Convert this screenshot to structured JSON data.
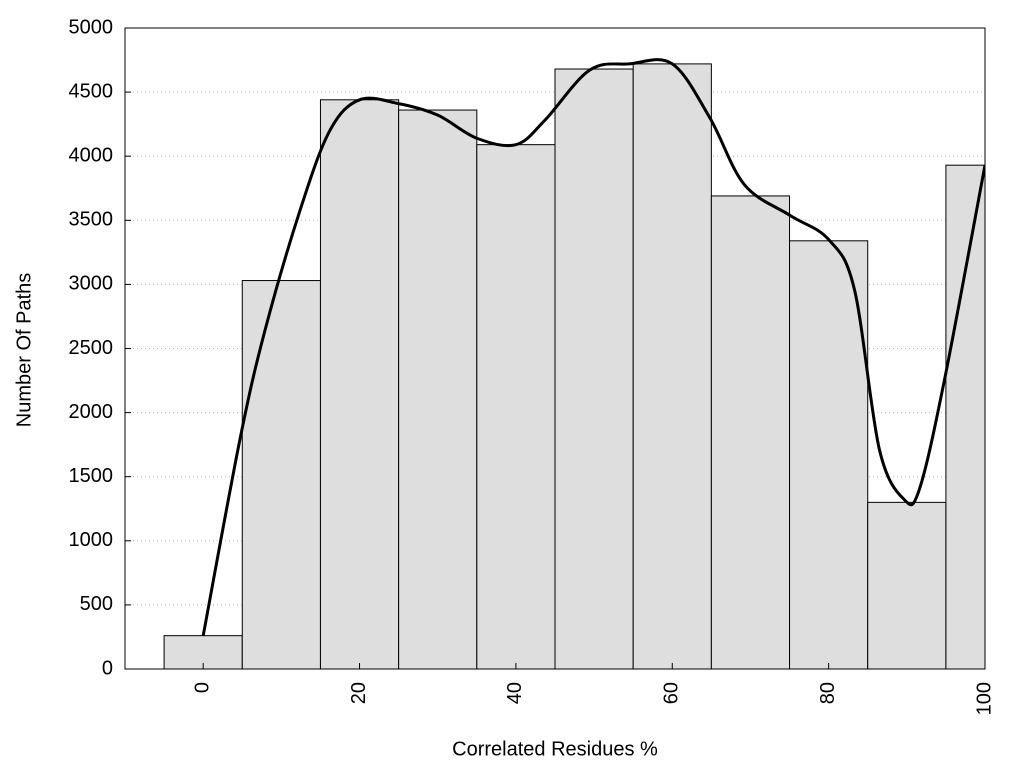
{
  "chart_data": {
    "type": "histogram",
    "x_label": "Correlated Residues %",
    "y_label": "Number Of Paths",
    "bins": [
      -5,
      5,
      15,
      25,
      35,
      45,
      55,
      65,
      75,
      85,
      95,
      105
    ],
    "values": [
      260,
      3030,
      4440,
      4360,
      4090,
      4680,
      4720,
      3690,
      3340,
      1300,
      3930
    ],
    "color": "#dedede",
    "curve": {
      "type": "line",
      "color": "#000000",
      "x": [
        0,
        4.7,
        7.9,
        12.4,
        16.2,
        20,
        25,
        30,
        35,
        40,
        43.7,
        49.4,
        54.5,
        60,
        64.8,
        69.2,
        75,
        80,
        83.3,
        86.5,
        89.7,
        91.6,
        94.8,
        100
      ],
      "values": [
        260,
        1790,
        2640,
        3580,
        4200,
        4440,
        4410,
        4320,
        4140,
        4090,
        4280,
        4670,
        4720,
        4720,
        4300,
        3780,
        3540,
        3350,
        2960,
        1710,
        1320,
        1400,
        2250,
        3930
      ]
    },
    "xlim": [
      -10,
      100
    ],
    "xticks": [
      0,
      20,
      40,
      60,
      80,
      100
    ],
    "ylim": [
      0,
      5000
    ],
    "yticks": [
      0,
      500,
      1000,
      1500,
      2000,
      2500,
      3000,
      3500,
      4000,
      4500,
      5000
    ],
    "grid": true
  }
}
